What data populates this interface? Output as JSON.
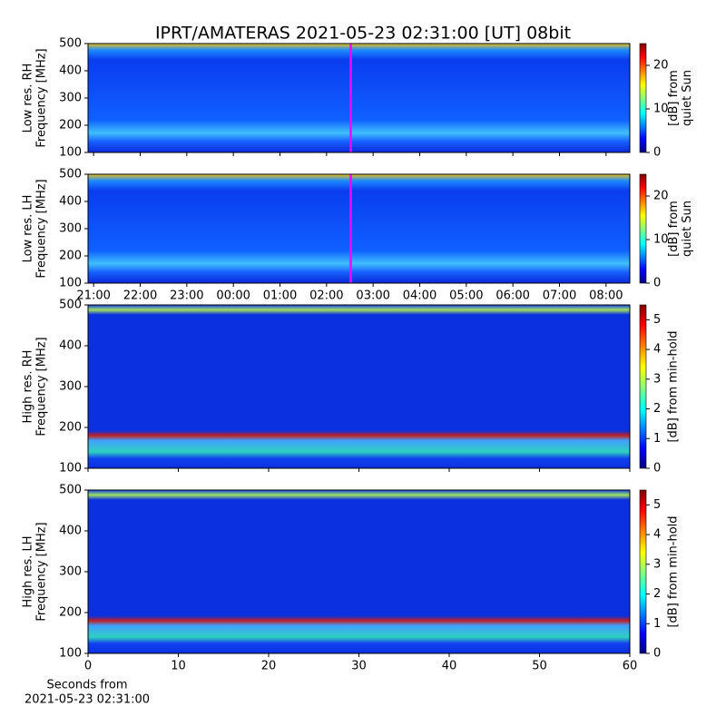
{
  "title": "IPRT/AMATERAS 2021-05-23 02:31:00 [UT]   08bit",
  "chart_data": [
    {
      "type": "spectrogram",
      "ylabel": [
        "Low res. RH",
        "Frequency [MHz]"
      ],
      "ylim": [
        100,
        500
      ],
      "yticks": [
        100,
        200,
        300,
        400,
        500
      ],
      "xlim": [
        20.88,
        32.51
      ],
      "marker_x": 26.52,
      "clim": [
        0,
        25
      ],
      "cticks": [
        0,
        10,
        20
      ],
      "clabel": [
        "[dB] from",
        "quiet Sun"
      ]
    },
    {
      "type": "spectrogram",
      "ylabel": [
        "Low res. LH",
        "Frequency [MHz]"
      ],
      "ylim": [
        100,
        500
      ],
      "yticks": [
        100,
        200,
        300,
        400,
        500
      ],
      "xlim": [
        20.88,
        32.51
      ],
      "marker_x": 26.52,
      "xticks": [
        {
          "value": 21,
          "label": "21:00"
        },
        {
          "value": 22,
          "label": "22:00"
        },
        {
          "value": 23,
          "label": "23:00"
        },
        {
          "value": 24,
          "label": "00:00"
        },
        {
          "value": 25,
          "label": "01:00"
        },
        {
          "value": 26,
          "label": "02:00"
        },
        {
          "value": 27,
          "label": "03:00"
        },
        {
          "value": 28,
          "label": "04:00"
        },
        {
          "value": 29,
          "label": "05:00"
        },
        {
          "value": 30,
          "label": "06:00"
        },
        {
          "value": 31,
          "label": "07:00"
        },
        {
          "value": 32,
          "label": "08:00"
        }
      ],
      "clim": [
        0,
        25
      ],
      "cticks": [
        0,
        10,
        20
      ],
      "clabel": [
        "[dB] from",
        "quiet Sun"
      ]
    },
    {
      "type": "spectrogram",
      "ylabel": [
        "High res. RH",
        "Frequency [MHz]"
      ],
      "ylim": [
        100,
        500
      ],
      "yticks": [
        100,
        200,
        300,
        400,
        500
      ],
      "xlim": [
        0,
        60
      ],
      "clim": [
        0,
        5.5
      ],
      "cticks": [
        0,
        1,
        2,
        3,
        4,
        5
      ],
      "clabel": [
        "[dB] from min-hold"
      ]
    },
    {
      "type": "spectrogram",
      "ylabel": [
        "High res. LH",
        "Frequency [MHz]"
      ],
      "ylim": [
        100,
        500
      ],
      "yticks": [
        100,
        200,
        300,
        400,
        500
      ],
      "xlim": [
        0,
        60
      ],
      "xticks": [
        0,
        10,
        20,
        30,
        40,
        50,
        60
      ],
      "xlabel": [
        "Seconds from",
        "2021-05-23 02:31:00"
      ],
      "clim": [
        0,
        5.5
      ],
      "cticks": [
        0,
        1,
        2,
        3,
        4,
        5
      ],
      "clabel": [
        "[dB] from min-hold"
      ]
    }
  ]
}
